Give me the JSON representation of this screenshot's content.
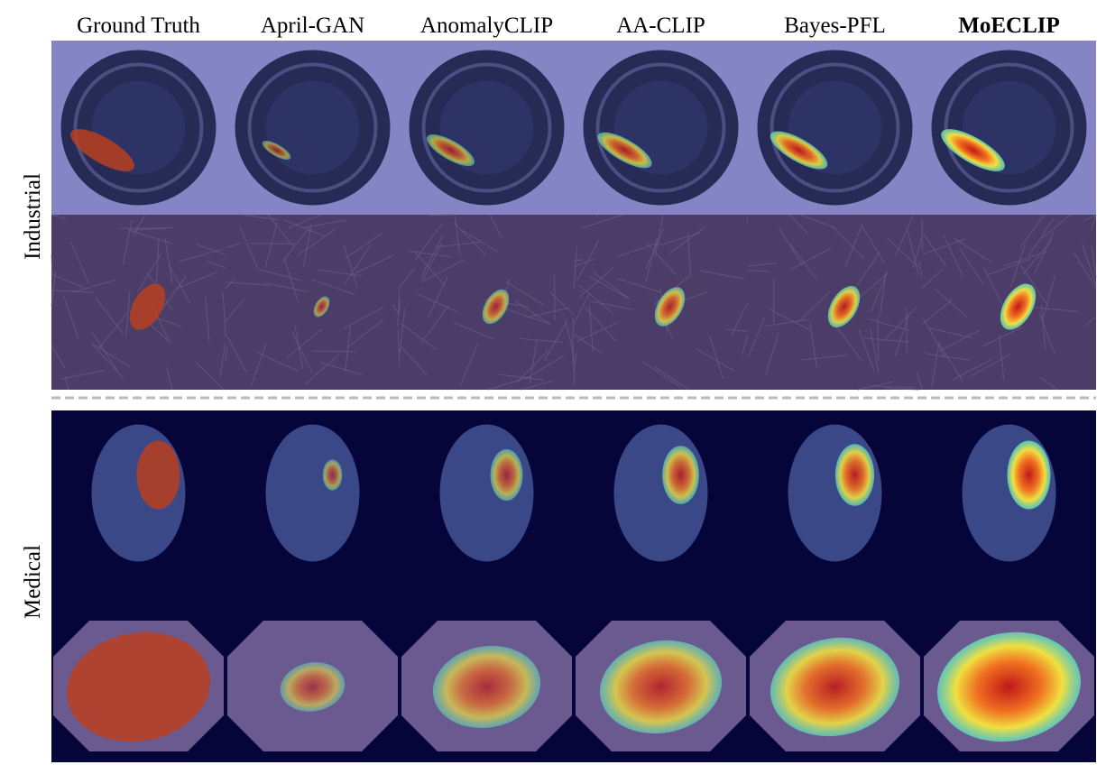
{
  "columns": [
    "Ground Truth",
    "April-GAN",
    "AnomalyCLIP",
    "AA-CLIP",
    "Bayes-PFL",
    "MoECLIP"
  ],
  "groups": [
    {
      "label": "Industrial"
    },
    {
      "label": "Medical"
    }
  ]
}
